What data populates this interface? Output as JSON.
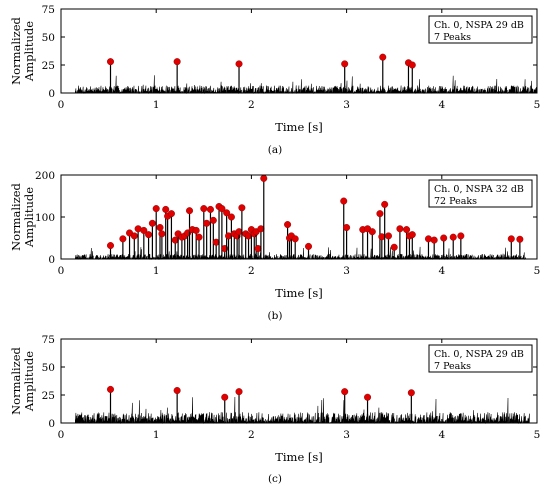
{
  "figure": {
    "panels": [
      {
        "caption": "(a)",
        "legend": [
          "Ch. 0, NSPA 29 dB",
          "7 Peaks"
        ]
      },
      {
        "caption": "(b)",
        "legend": [
          "Ch. 0, NSPA 32 dB",
          "72 Peaks"
        ]
      },
      {
        "caption": "(c)",
        "legend": [
          "Ch. 0, NSPA 29 dB",
          "7 Peaks"
        ]
      }
    ]
  },
  "chart_data": [
    {
      "type": "line",
      "xlabel": "Time [s]",
      "ylabel": [
        "Normalized",
        "Amplitude"
      ],
      "xlim": [
        0,
        5
      ],
      "ylim": [
        0,
        75
      ],
      "xticks": [
        0,
        1,
        2,
        3,
        4,
        5
      ],
      "yticks": [
        0,
        25,
        50,
        75
      ],
      "grid": false,
      "legend_position": "top-right",
      "signal_end_s": 5.0,
      "peaks": {
        "x": [
          0.52,
          1.22,
          1.87,
          2.98,
          3.38,
          3.65,
          3.69
        ],
        "y": [
          28,
          28,
          26,
          26,
          32,
          27,
          25
        ]
      },
      "marker_color": "#e00000",
      "line_color": "#000000"
    },
    {
      "type": "line",
      "xlabel": "Time [s]",
      "ylabel": [
        "Normalized",
        "Amplitude"
      ],
      "xlim": [
        0,
        5
      ],
      "ylim": [
        0,
        200
      ],
      "xticks": [
        0,
        1,
        2,
        3,
        4,
        5
      ],
      "yticks": [
        0,
        100,
        200
      ],
      "grid": false,
      "legend_position": "top-right",
      "signal_end_s": 4.88,
      "peaks": {
        "x": [
          0.52,
          0.65,
          0.72,
          0.77,
          0.81,
          0.87,
          0.92,
          0.96,
          1.0,
          1.04,
          1.06,
          1.1,
          1.12,
          1.16,
          1.2,
          1.23,
          1.27,
          1.3,
          1.33,
          1.35,
          1.38,
          1.42,
          1.45,
          1.5,
          1.53,
          1.57,
          1.6,
          1.63,
          1.66,
          1.69,
          1.72,
          1.74,
          1.76,
          1.79,
          1.82,
          1.85,
          1.87,
          1.9,
          1.94,
          1.97,
          2.0,
          2.03,
          2.05,
          2.07,
          2.1,
          2.13,
          2.38,
          2.4,
          2.42,
          2.46,
          2.6,
          2.97,
          3.0,
          3.17,
          3.22,
          3.27,
          3.35,
          3.37,
          3.4,
          3.44,
          3.5,
          3.56,
          3.63,
          3.66,
          3.69,
          3.86,
          3.92,
          4.02,
          4.12,
          4.2,
          4.73,
          4.82
        ],
        "y": [
          32,
          48,
          62,
          55,
          72,
          68,
          58,
          85,
          120,
          75,
          60,
          118,
          102,
          108,
          45,
          60,
          52,
          55,
          62,
          115,
          70,
          68,
          52,
          120,
          85,
          118,
          92,
          40,
          125,
          120,
          25,
          110,
          55,
          100,
          60,
          55,
          65,
          122,
          60,
          55,
          70,
          60,
          65,
          25,
          72,
          192,
          82,
          50,
          55,
          48,
          30,
          138,
          75,
          70,
          72,
          65,
          108,
          53,
          130,
          55,
          28,
          72,
          70,
          55,
          58,
          48,
          45,
          50,
          52,
          55,
          48,
          47
        ]
      },
      "marker_color": "#e00000",
      "line_color": "#000000"
    },
    {
      "type": "line",
      "xlabel": "Time [s]",
      "ylabel": [
        "Normalized",
        "Amplitude"
      ],
      "xlim": [
        0,
        5
      ],
      "ylim": [
        0,
        75
      ],
      "xticks": [
        0,
        1,
        2,
        3,
        4,
        5
      ],
      "yticks": [
        0,
        25,
        50,
        75
      ],
      "grid": false,
      "legend_position": "top-right",
      "signal_end_s": 4.92,
      "peaks": {
        "x": [
          0.52,
          1.22,
          1.72,
          1.87,
          2.98,
          3.22,
          3.68
        ],
        "y": [
          30,
          29,
          23,
          28,
          28,
          23,
          27
        ]
      },
      "marker_color": "#e00000",
      "line_color": "#000000"
    }
  ]
}
